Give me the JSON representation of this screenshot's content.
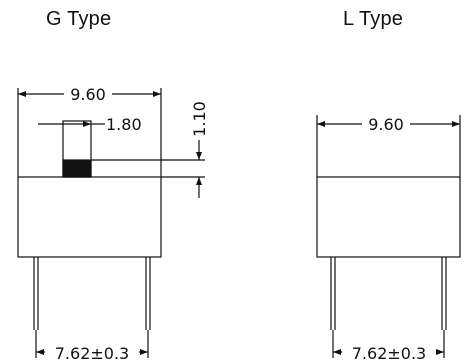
{
  "diagrams": {
    "g_type": {
      "title": "G Type",
      "width_dim": "9.60",
      "tab_dim": "1.80",
      "height_dim": "1.10",
      "pitch_dim": "7.62±0.3"
    },
    "l_type": {
      "title": "L Type",
      "width_dim": "9.60",
      "pitch_dim": "7.62±0.3"
    }
  }
}
